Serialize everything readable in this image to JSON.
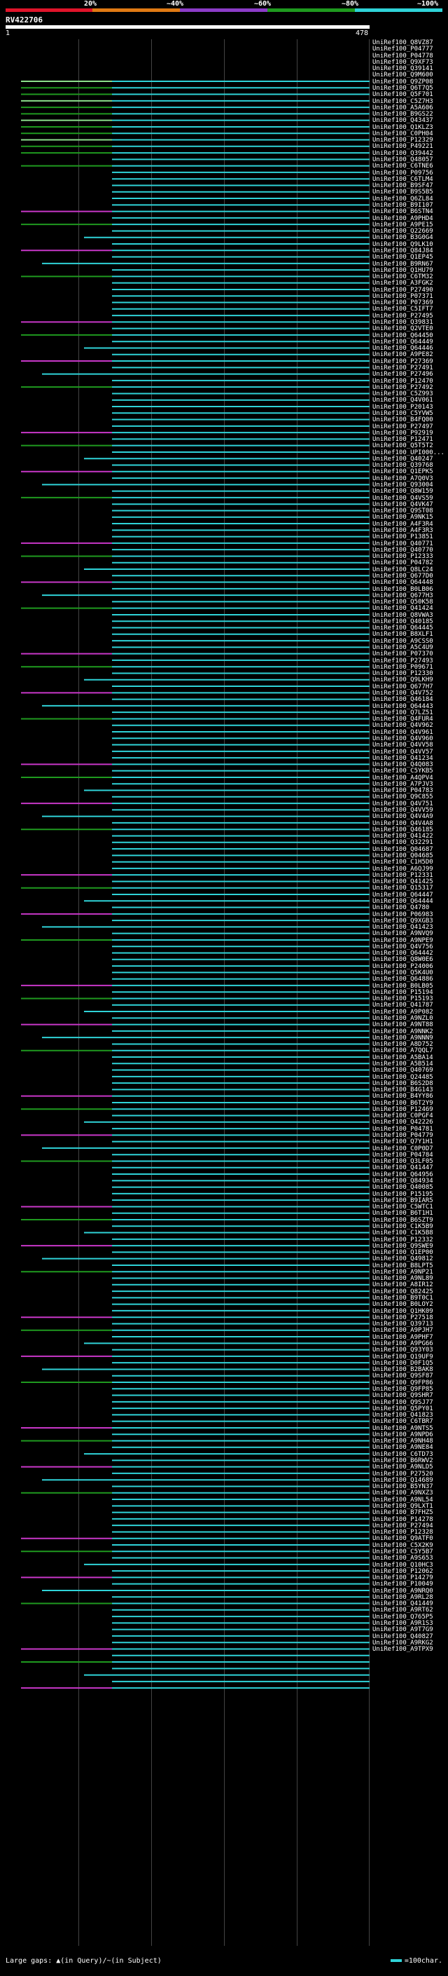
{
  "legend": {
    "ticks": [
      "20%",
      "~40%",
      "~60%",
      "~80%",
      "~100%"
    ],
    "colors": [
      "#e0142a",
      "#e07a14",
      "#8c3cc8",
      "#1f9a1f",
      "#2fd3d8"
    ]
  },
  "query": {
    "name": "RV422706",
    "start": "1",
    "end": "478"
  },
  "hits": [
    "UniRef100_Q8VZ87",
    "UniRef100_P04777",
    "UniRef100_P04778",
    "UniRef100_Q9XF73",
    "UniRef100_Q39141",
    "UniRef100_Q9M600",
    "UniRef100_Q9ZP08",
    "UniRef100_Q6T7Q5",
    "UniRef100_Q5F701",
    "UniRef100_C5Z7H3",
    "UniRef100_A5A606",
    "UniRef100_B9GS22",
    "UniRef100_Q43437",
    "UniRef100_Q1KLZ3",
    "UniRef100_C0PH04",
    "UniRef100_P12329",
    "UniRef100_P49221",
    "UniRef100_Q39442",
    "UniRef100_Q48057",
    "UniRef100_C6TNE6",
    "UniRef100_P09756",
    "UniRef100_C6TLM4",
    "UniRef100_B9SF47",
    "UniRef100_B9S5B5",
    "UniRef100_Q6ZL84",
    "UniRef100_B9I107",
    "UniRef100_B6STN4",
    "UniRef100_A9PHD4",
    "UniRef100_A9PE15",
    "UniRef100_Q22669",
    "UniRef100_B3G0G4",
    "UniRef100_Q9LK10",
    "UniRef100_Q84J84",
    "UniRef100_Q1EP45",
    "UniRef100_B9RN67",
    "UniRef100_Q1HU79",
    "UniRef100_C6TM32",
    "UniRef100_A3FGK2",
    "UniRef100_P27490",
    "UniRef100_P07371",
    "UniRef100_P07369",
    "UniRef100_C5IFT7",
    "UniRef100_P27495",
    "UniRef100_Q39831",
    "UniRef100_Q2VTE0",
    "UniRef100_Q64450",
    "UniRef100_Q64449",
    "UniRef100_Q64446",
    "UniRef100_A9PE82",
    "UniRef100_P27369",
    "UniRef100_P27491",
    "UniRef100_P27496",
    "UniRef100_P12470",
    "UniRef100_P27492",
    "UniRef100_C5Z993",
    "UniRef100_Q4V061",
    "UniRef100_P20143",
    "UniRef100_C5YVW5",
    "UniRef100_B4FQ00",
    "UniRef100_P27497",
    "UniRef100_P92919",
    "UniRef100_P12471",
    "UniRef100_Q5T5T2",
    "UniRef100_UPI000...",
    "UniRef100_Q40247",
    "UniRef100_Q39768",
    "UniRef100_Q1EPK5",
    "UniRef100_A7Q0V3",
    "UniRef100_Q93004",
    "UniRef100_Q8W159",
    "UniRef100_Q4VS59",
    "UniRef100_Q4VK47",
    "UniRef100_Q9ST08",
    "UniRef100_A9NK15",
    "UniRef100_A4F3R4",
    "UniRef100_A4F3R3",
    "UniRef100_P13851",
    "UniRef100_Q40771",
    "UniRef100_Q40770",
    "UniRef100_P12333",
    "UniRef100_P04782",
    "UniRef100_Q8LC24",
    "UniRef100_Q677D0",
    "UniRef100_Q64448",
    "UniRef100_B0LB06",
    "UniRef100_Q677H3",
    "UniRef100_Q50K58",
    "UniRef100_Q41424",
    "UniRef100_Q8VWA3",
    "UniRef100_Q40185",
    "UniRef100_Q64445",
    "UniRef100_B8XLF1",
    "UniRef100_A9CSS0",
    "UniRef100_A5C4U9",
    "UniRef100_P07370",
    "UniRef100_P27493",
    "UniRef100_P09671",
    "UniRef100_P12330",
    "UniRef100_Q9LKH9",
    "UniRef100_Q677H7",
    "UniRef100_Q4V752",
    "UniRef100_Q46184",
    "UniRef100_Q64443",
    "UniRef100_Q7LZ51",
    "UniRef100_Q4FUR4",
    "UniRef100_Q4V962",
    "UniRef100_Q4V961",
    "UniRef100_Q4V960",
    "UniRef100_Q4VV58",
    "UniRef100_Q4VV57",
    "UniRef100_Q41234",
    "UniRef100_Q4Q083",
    "UniRef100_C5YKB5",
    "UniRef100_A4QPV4",
    "UniRef100_A7PJV3",
    "UniRef100_P04783",
    "UniRef100_Q9C855",
    "UniRef100_Q4V751",
    "UniRef100_Q4VV59",
    "UniRef100_Q4V4A9",
    "UniRef100_Q4V4A8",
    "UniRef100_Q46185",
    "UniRef100_Q41422",
    "UniRef100_Q32291",
    "UniRef100_Q04687",
    "UniRef100_Q04685",
    "UniRef100_C1H5D0",
    "UniRef100_A6QJ99",
    "UniRef100_P12331",
    "UniRef100_Q41425",
    "UniRef100_Q15317",
    "UniRef100_Q64447",
    "UniRef100_Q64444",
    "UniRef100_Q4780",
    "UniRef100_P06983",
    "UniRef100_Q9XGB3",
    "UniRef100_Q41423",
    "UniRef100_A9NVQ9",
    "UniRef100_A9NPE9",
    "UniRef100_Q4V756",
    "UniRef100_Q64442",
    "UniRef100_Q8W0E6",
    "UniRef100_P24006",
    "UniRef100_Q5K4U0",
    "UniRef100_Q64886",
    "UniRef100_B0LB05",
    "UniRef100_P15194",
    "UniRef100_P15193",
    "UniRef100_Q41787",
    "UniRef100_A9P082",
    "UniRef100_A9NZL0",
    "UniRef100_A9NT88",
    "UniRef100_A9NNK2",
    "UniRef100_A9NNN9",
    "UniRef100_A8D752",
    "UniRef100_A7QQL7",
    "UniRef100_A5BA14",
    "UniRef100_A5B514",
    "UniRef100_Q40769",
    "UniRef100_Q24485",
    "UniRef100_B6S2D8",
    "UniRef100_B4G143",
    "UniRef100_B4YY86",
    "UniRef100_B6T2Y9",
    "UniRef100_P12469",
    "UniRef100_C0PGF4",
    "UniRef100_Q42226",
    "UniRef100_P04781",
    "UniRef100_P04779",
    "UniRef100_Q7Y1H1",
    "UniRef100_C0P0D7",
    "UniRef100_P04784",
    "UniRef100_Q3LF05",
    "UniRef100_Q41447",
    "UniRef100_Q64956",
    "UniRef100_Q84934",
    "UniRef100_Q40085",
    "UniRef100_P15195",
    "UniRef100_B9IAR5",
    "UniRef100_C5WTC1",
    "UniRef100_B6T1H1",
    "UniRef100_B6SZT9",
    "UniRef100_C1K5B9",
    "UniRef100_C1K5B8",
    "UniRef100_P12332",
    "UniRef100_Q9SWE9",
    "UniRef100_Q1EP00",
    "UniRef100_Q49812",
    "UniRef100_B8LPT5",
    "UniRef100_A9NP21",
    "UniRef100_A9NL89",
    "UniRef100_A8IR12",
    "UniRef100_Q82425",
    "UniRef100_B9T0C1",
    "UniRef100_B0LOY2",
    "UniRef100_Q1HK09",
    "UniRef100_P27518",
    "UniRef100_Q39713",
    "UniRef100_A9PJH7",
    "UniRef100_A9PHF7",
    "UniRef100_A9PG66",
    "UniRef100_Q93Y03",
    "UniRef100_Q19UF9",
    "UniRef100_D0F1Q5",
    "UniRef100_B2BAK8",
    "UniRef100_Q9SF87",
    "UniRef100_Q9FP86",
    "UniRef100_Q9FP85",
    "UniRef100_Q9SHR7",
    "UniRef100_Q9SJ77",
    "UniRef100_Q5PY01",
    "UniRef100_Q41823",
    "UniRef100_C6TBR7",
    "UniRef100_A9NTS5",
    "UniRef100_A9NPD6",
    "UniRef100_A9NH48",
    "UniRef100_A9NE84",
    "UniRef100_C6TD73",
    "UniRef100_B6RWV2",
    "UniRef100_A9NLD5",
    "UniRef100_P27520",
    "UniRef100_Q14689",
    "UniRef100_B5YN37",
    "UniRef100_A9NXZ3",
    "UniRef100_A9NL54",
    "UniRef100_Q9LXT1",
    "UniRef100_B7FHZ5",
    "UniRef100_P14278",
    "UniRef100_P27494",
    "UniRef100_P12328",
    "UniRef100_Q9ATF0",
    "UniRef100_C5X2K9",
    "UniRef100_C5Y5B7",
    "UniRef100_A9S653",
    "UniRef100_Q10HC3",
    "UniRef100_P12062",
    "UniRef100_P14279",
    "UniRef100_P10049",
    "UniRef100_A9NRQ0",
    "UniRef100_A9RL28",
    "UniRef100_Q41449",
    "UniRef100_A9RT62",
    "UniRef100_Q765P5",
    "UniRef100_A9R1S3",
    "UniRef100_A9T7G9",
    "UniRef100_Q40827",
    "UniRef100_A9RKG2",
    "UniRef100_A9TPX9"
  ],
  "footer": {
    "left": "Large gaps: ▲(in Query)/~(in Subject)",
    "right": "=100char."
  }
}
